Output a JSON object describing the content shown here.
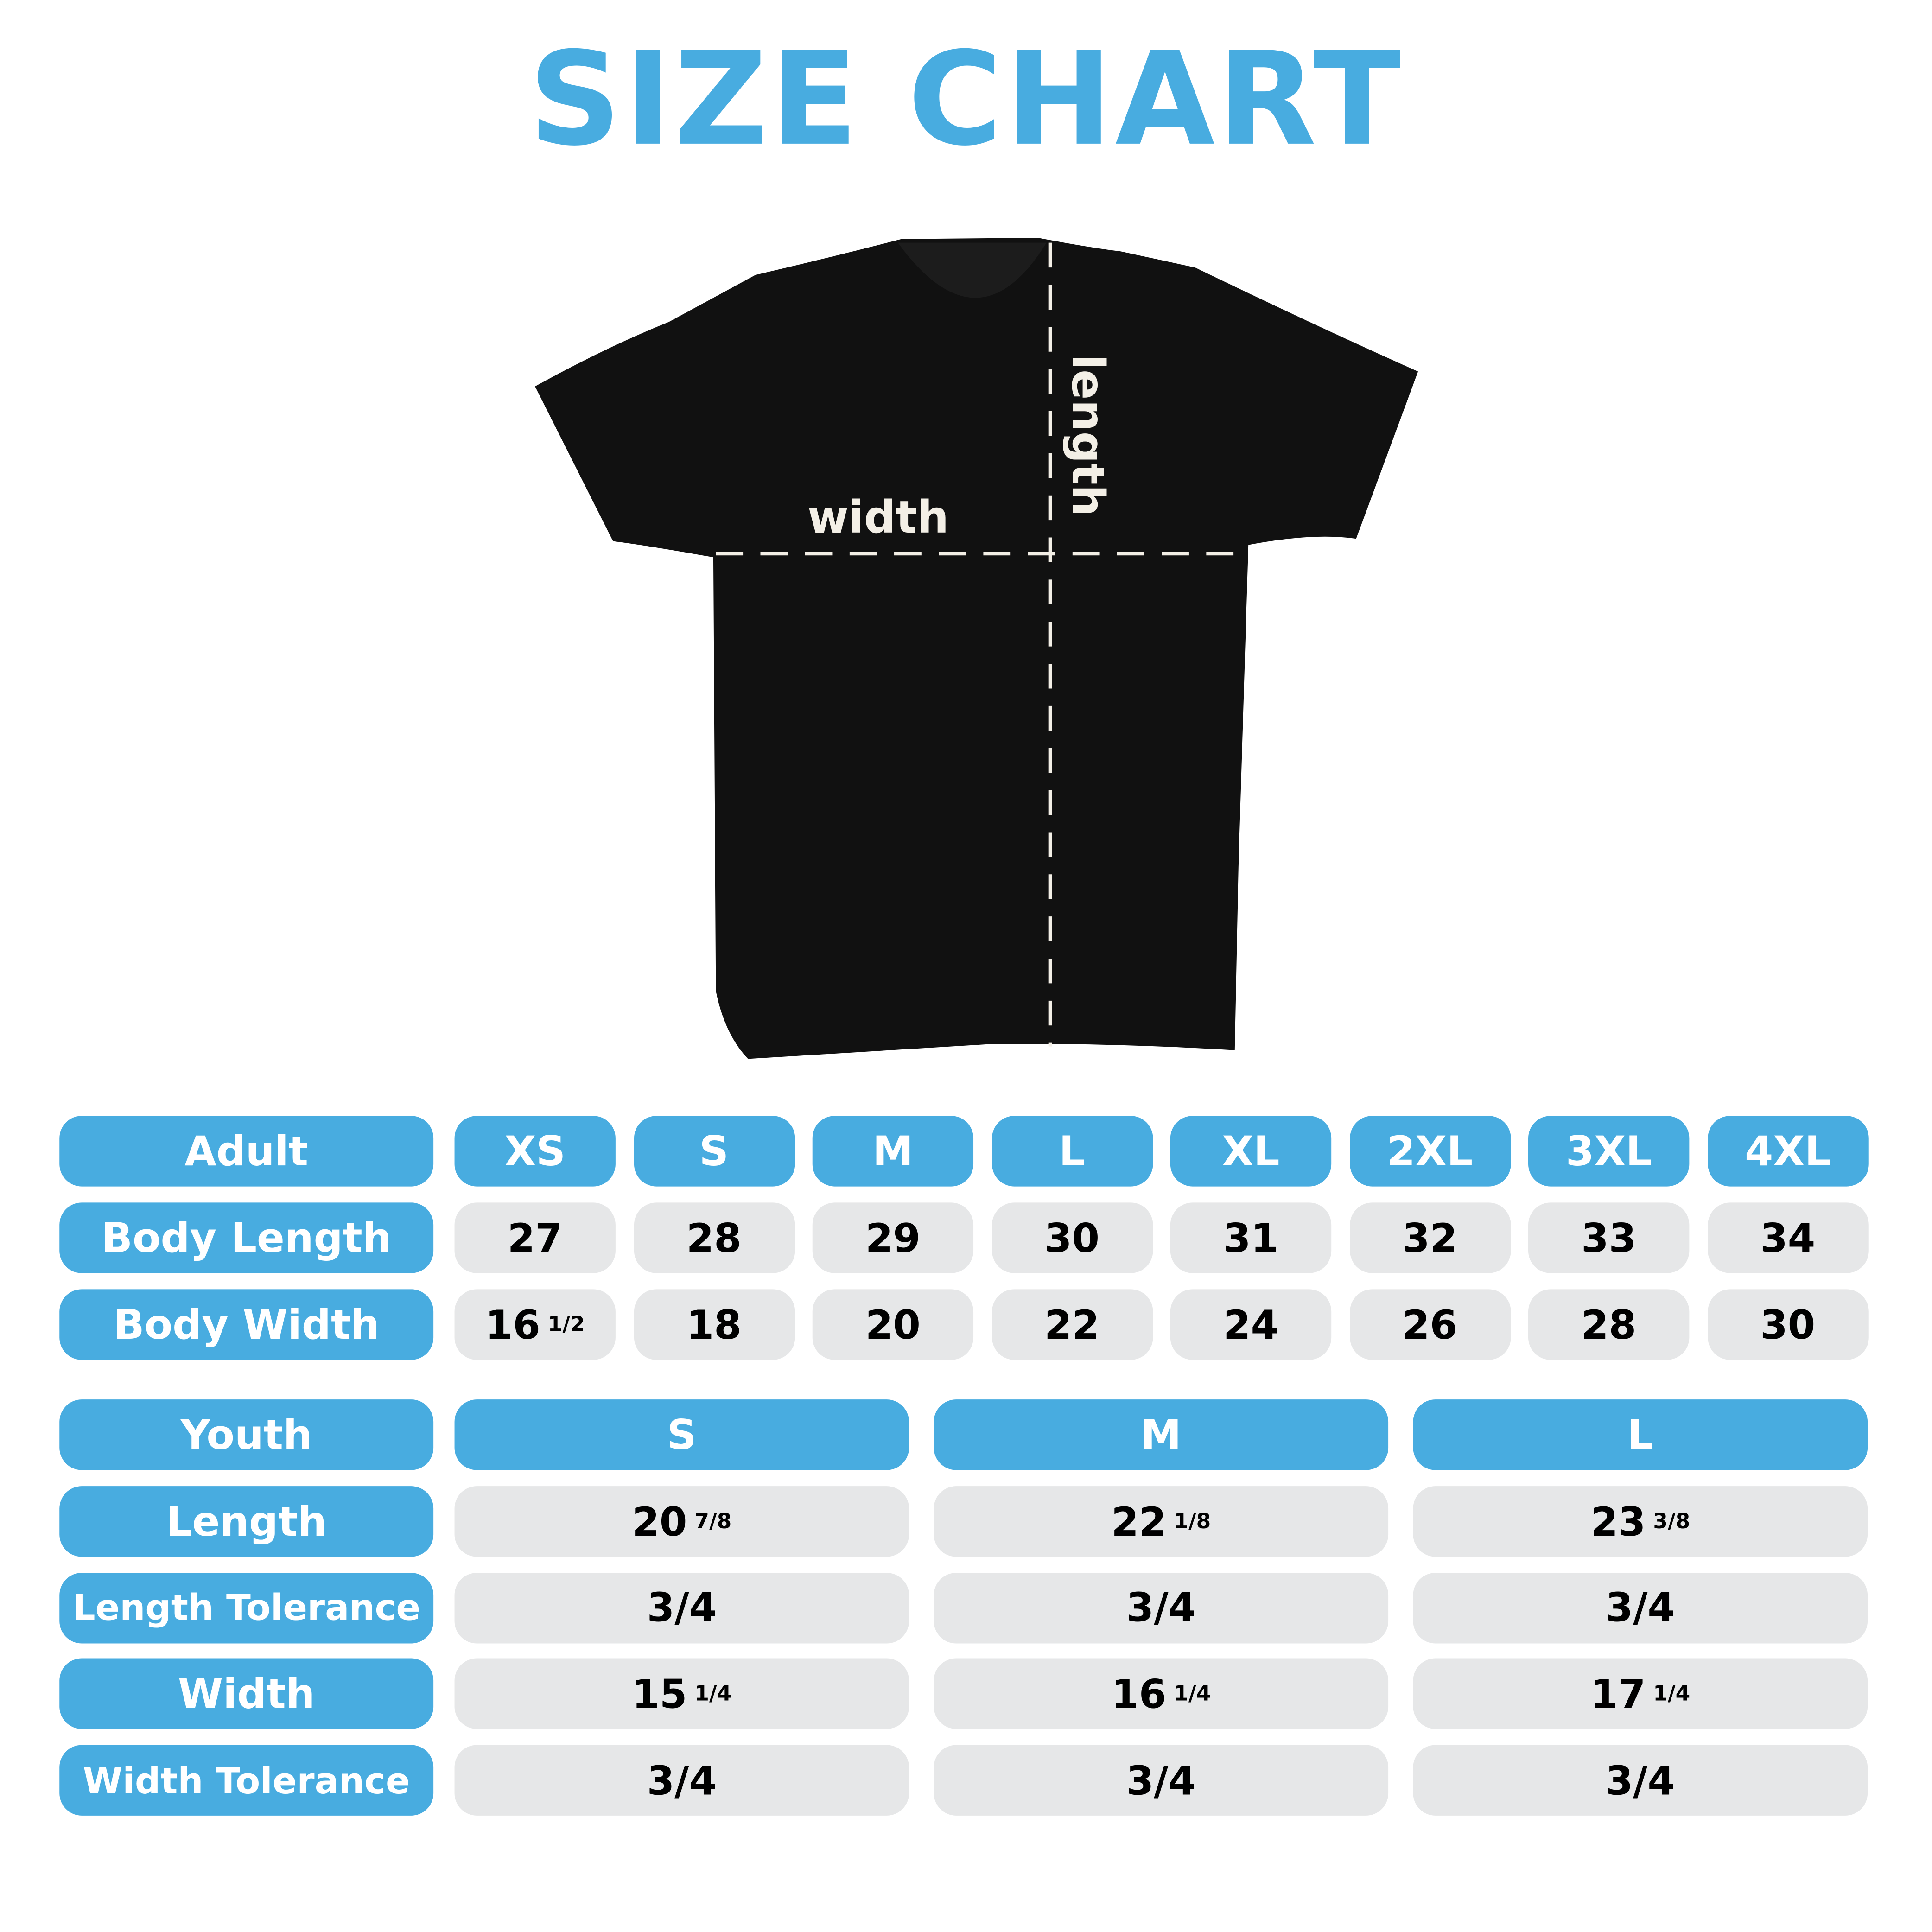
{
  "title": "SIZE CHART",
  "diagram": {
    "width_label": "width",
    "length_label": "length",
    "shirt_color": "#111111"
  },
  "colors": {
    "accent": "#48ACE0",
    "cell": "#E6E7E8"
  },
  "adult": {
    "header": "Adult",
    "sizes": [
      "XS",
      "S",
      "M",
      "L",
      "XL",
      "2XL",
      "3XL",
      "4XL"
    ],
    "rows": [
      {
        "label": "Body Length",
        "values": [
          {
            "whole": "27",
            "frac": ""
          },
          {
            "whole": "28",
            "frac": ""
          },
          {
            "whole": "29",
            "frac": ""
          },
          {
            "whole": "30",
            "frac": ""
          },
          {
            "whole": "31",
            "frac": ""
          },
          {
            "whole": "32",
            "frac": ""
          },
          {
            "whole": "33",
            "frac": ""
          },
          {
            "whole": "34",
            "frac": ""
          }
        ]
      },
      {
        "label": "Body Width",
        "values": [
          {
            "whole": "16",
            "frac": "1/2"
          },
          {
            "whole": "18",
            "frac": ""
          },
          {
            "whole": "20",
            "frac": ""
          },
          {
            "whole": "22",
            "frac": ""
          },
          {
            "whole": "24",
            "frac": ""
          },
          {
            "whole": "26",
            "frac": ""
          },
          {
            "whole": "28",
            "frac": ""
          },
          {
            "whole": "30",
            "frac": ""
          }
        ]
      }
    ]
  },
  "youth": {
    "header": "Youth",
    "sizes": [
      "S",
      "M",
      "L"
    ],
    "rows": [
      {
        "label": "Length",
        "values": [
          {
            "whole": "20",
            "frac": "7/8"
          },
          {
            "whole": "22",
            "frac": "1/8"
          },
          {
            "whole": "23",
            "frac": "3/8"
          }
        ]
      },
      {
        "label": "Length Tolerance",
        "values": [
          {
            "whole": "3/4",
            "frac": ""
          },
          {
            "whole": "3/4",
            "frac": ""
          },
          {
            "whole": "3/4",
            "frac": ""
          }
        ]
      },
      {
        "label": "Width",
        "values": [
          {
            "whole": "15",
            "frac": "1/4"
          },
          {
            "whole": "16",
            "frac": "1/4"
          },
          {
            "whole": "17",
            "frac": "1/4"
          }
        ]
      },
      {
        "label": "Width Tolerance",
        "values": [
          {
            "whole": "3/4",
            "frac": ""
          },
          {
            "whole": "3/4",
            "frac": ""
          },
          {
            "whole": "3/4",
            "frac": ""
          }
        ]
      }
    ]
  }
}
